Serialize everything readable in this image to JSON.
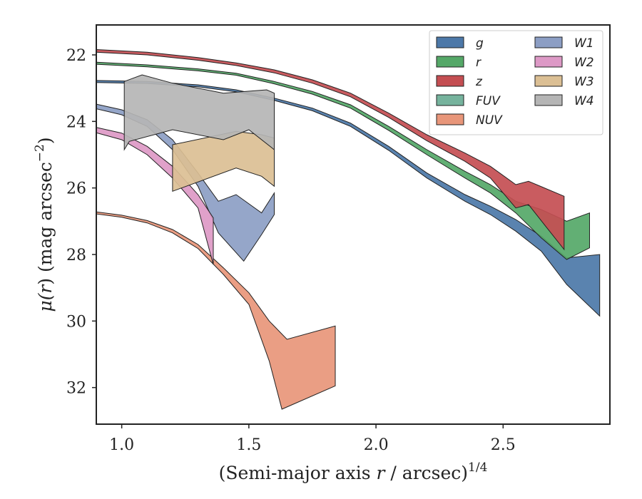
{
  "chart_data": {
    "type": "area",
    "xlabel": "(Semi-major axis r / arcsec)",
    "xlabel_parts": {
      "pre": "(Semi-major axis ",
      "var": "r",
      "post": " / arcsec)",
      "sup": "1/4"
    },
    "ylabel": "μ(r) (mag arcsec−2)",
    "ylabel_parts": {
      "pre": "μ(",
      "var": "r",
      "post": ") (mag arcsec",
      "sup": "−2",
      "close": ")"
    },
    "xlim": [
      0.9,
      2.92
    ],
    "ylim": [
      33.1,
      21.1
    ],
    "y_inverted": true,
    "xticks": [
      1.0,
      1.5,
      2.0,
      2.5
    ],
    "xtick_labels": [
      "1.0",
      "1.5",
      "2.0",
      "2.5"
    ],
    "yticks": [
      22,
      24,
      26,
      28,
      30,
      32
    ],
    "ytick_labels": [
      "22",
      "24",
      "26",
      "28",
      "30",
      "32"
    ],
    "grid": false,
    "legend_position": "top-right",
    "legend_columns": 2,
    "series": [
      {
        "name": "g",
        "color": "#4c78a8",
        "upper": [
          [
            0.9,
            22.77
          ],
          [
            1.1,
            22.8
          ],
          [
            1.3,
            22.9
          ],
          [
            1.45,
            23.05
          ],
          [
            1.6,
            23.3
          ],
          [
            1.75,
            23.6
          ],
          [
            1.9,
            24.05
          ],
          [
            2.05,
            24.75
          ],
          [
            2.2,
            25.55
          ],
          [
            2.35,
            26.2
          ],
          [
            2.45,
            26.55
          ],
          [
            2.55,
            26.95
          ],
          [
            2.65,
            27.45
          ],
          [
            2.75,
            28.1
          ],
          [
            2.88,
            28.0
          ]
        ],
        "lower": [
          [
            0.9,
            22.83
          ],
          [
            1.1,
            22.86
          ],
          [
            1.3,
            22.96
          ],
          [
            1.45,
            23.11
          ],
          [
            1.6,
            23.37
          ],
          [
            1.75,
            23.68
          ],
          [
            1.9,
            24.15
          ],
          [
            2.05,
            24.87
          ],
          [
            2.2,
            25.7
          ],
          [
            2.35,
            26.4
          ],
          [
            2.45,
            26.8
          ],
          [
            2.55,
            27.3
          ],
          [
            2.65,
            27.9
          ],
          [
            2.75,
            28.9
          ],
          [
            2.88,
            29.85
          ]
        ]
      },
      {
        "name": "r",
        "color": "#55a868",
        "upper": [
          [
            0.9,
            22.22
          ],
          [
            1.1,
            22.3
          ],
          [
            1.3,
            22.42
          ],
          [
            1.45,
            22.55
          ],
          [
            1.6,
            22.8
          ],
          [
            1.75,
            23.1
          ],
          [
            1.9,
            23.5
          ],
          [
            2.05,
            24.15
          ],
          [
            2.2,
            24.85
          ],
          [
            2.35,
            25.5
          ],
          [
            2.45,
            25.9
          ],
          [
            2.55,
            26.4
          ],
          [
            2.65,
            26.65
          ],
          [
            2.75,
            27.0
          ],
          [
            2.84,
            26.75
          ]
        ],
        "lower": [
          [
            0.9,
            22.28
          ],
          [
            1.1,
            22.36
          ],
          [
            1.3,
            22.48
          ],
          [
            1.45,
            22.61
          ],
          [
            1.6,
            22.87
          ],
          [
            1.75,
            23.18
          ],
          [
            1.9,
            23.6
          ],
          [
            2.05,
            24.27
          ],
          [
            2.2,
            25.0
          ],
          [
            2.35,
            25.7
          ],
          [
            2.45,
            26.15
          ],
          [
            2.55,
            26.75
          ],
          [
            2.65,
            27.5
          ],
          [
            2.75,
            28.15
          ],
          [
            2.84,
            27.8
          ]
        ]
      },
      {
        "name": "z",
        "color": "#c44e52",
        "upper": [
          [
            0.9,
            21.84
          ],
          [
            1.1,
            21.92
          ],
          [
            1.3,
            22.08
          ],
          [
            1.45,
            22.24
          ],
          [
            1.6,
            22.45
          ],
          [
            1.75,
            22.75
          ],
          [
            1.9,
            23.15
          ],
          [
            2.05,
            23.75
          ],
          [
            2.2,
            24.4
          ],
          [
            2.35,
            24.95
          ],
          [
            2.45,
            25.35
          ],
          [
            2.55,
            25.9
          ],
          [
            2.6,
            25.8
          ],
          [
            2.74,
            26.25
          ]
        ],
        "lower": [
          [
            0.9,
            21.92
          ],
          [
            1.1,
            22.0
          ],
          [
            1.3,
            22.16
          ],
          [
            1.45,
            22.32
          ],
          [
            1.6,
            22.54
          ],
          [
            1.75,
            22.85
          ],
          [
            1.9,
            23.26
          ],
          [
            2.05,
            23.88
          ],
          [
            2.2,
            24.58
          ],
          [
            2.35,
            25.2
          ],
          [
            2.45,
            25.7
          ],
          [
            2.55,
            26.6
          ],
          [
            2.6,
            26.5
          ],
          [
            2.74,
            27.85
          ]
        ]
      },
      {
        "name": "FUV",
        "color": "#76b39d",
        "upper": [],
        "lower": []
      },
      {
        "name": "NUV",
        "color": "#e8967a",
        "upper": [
          [
            0.9,
            26.72
          ],
          [
            1.0,
            26.82
          ],
          [
            1.1,
            26.98
          ],
          [
            1.2,
            27.25
          ],
          [
            1.3,
            27.7
          ],
          [
            1.4,
            28.4
          ],
          [
            1.5,
            29.15
          ],
          [
            1.58,
            30.0
          ],
          [
            1.65,
            30.55
          ],
          [
            1.84,
            30.15
          ]
        ],
        "lower": [
          [
            0.9,
            26.78
          ],
          [
            1.0,
            26.88
          ],
          [
            1.1,
            27.05
          ],
          [
            1.2,
            27.35
          ],
          [
            1.3,
            27.82
          ],
          [
            1.4,
            28.6
          ],
          [
            1.5,
            29.5
          ],
          [
            1.58,
            31.2
          ],
          [
            1.63,
            32.65
          ],
          [
            1.84,
            31.95
          ]
        ]
      },
      {
        "name": "W1",
        "color": "#8c9ec4",
        "upper": [
          [
            0.9,
            23.48
          ],
          [
            1.0,
            23.65
          ],
          [
            1.1,
            23.95
          ],
          [
            1.2,
            24.55
          ],
          [
            1.3,
            25.55
          ],
          [
            1.38,
            26.4
          ],
          [
            1.45,
            26.2
          ],
          [
            1.55,
            26.75
          ],
          [
            1.6,
            26.15
          ]
        ],
        "lower": [
          [
            0.9,
            23.62
          ],
          [
            1.0,
            23.8
          ],
          [
            1.1,
            24.15
          ],
          [
            1.2,
            24.85
          ],
          [
            1.3,
            25.95
          ],
          [
            1.38,
            27.35
          ],
          [
            1.48,
            28.2
          ],
          [
            1.55,
            27.4
          ],
          [
            1.6,
            26.8
          ]
        ]
      },
      {
        "name": "W2",
        "color": "#dd99c6",
        "upper": [
          [
            0.9,
            24.18
          ],
          [
            1.0,
            24.35
          ],
          [
            1.1,
            24.75
          ],
          [
            1.2,
            25.35
          ],
          [
            1.3,
            26.2
          ],
          [
            1.36,
            26.9
          ]
        ],
        "lower": [
          [
            0.9,
            24.34
          ],
          [
            1.0,
            24.55
          ],
          [
            1.1,
            25.0
          ],
          [
            1.2,
            25.7
          ],
          [
            1.3,
            26.6
          ],
          [
            1.36,
            28.3
          ]
        ]
      },
      {
        "name": "W3",
        "color": "#dbbf94",
        "upper": [
          [
            1.2,
            24.7
          ],
          [
            1.45,
            24.3
          ],
          [
            1.55,
            24.4
          ],
          [
            1.6,
            24.5
          ]
        ],
        "lower": [
          [
            1.2,
            26.1
          ],
          [
            1.45,
            25.4
          ],
          [
            1.55,
            25.65
          ],
          [
            1.6,
            25.95
          ]
        ]
      },
      {
        "name": "W4",
        "color": "#b5b5b5",
        "upper": [
          [
            1.01,
            22.8
          ],
          [
            1.08,
            22.6
          ],
          [
            1.2,
            22.85
          ],
          [
            1.4,
            23.15
          ],
          [
            1.57,
            23.05
          ],
          [
            1.6,
            23.15
          ]
        ],
        "lower": [
          [
            1.01,
            24.85
          ],
          [
            1.03,
            24.6
          ],
          [
            1.2,
            24.25
          ],
          [
            1.4,
            24.55
          ],
          [
            1.5,
            24.25
          ],
          [
            1.6,
            24.85
          ]
        ]
      }
    ]
  }
}
